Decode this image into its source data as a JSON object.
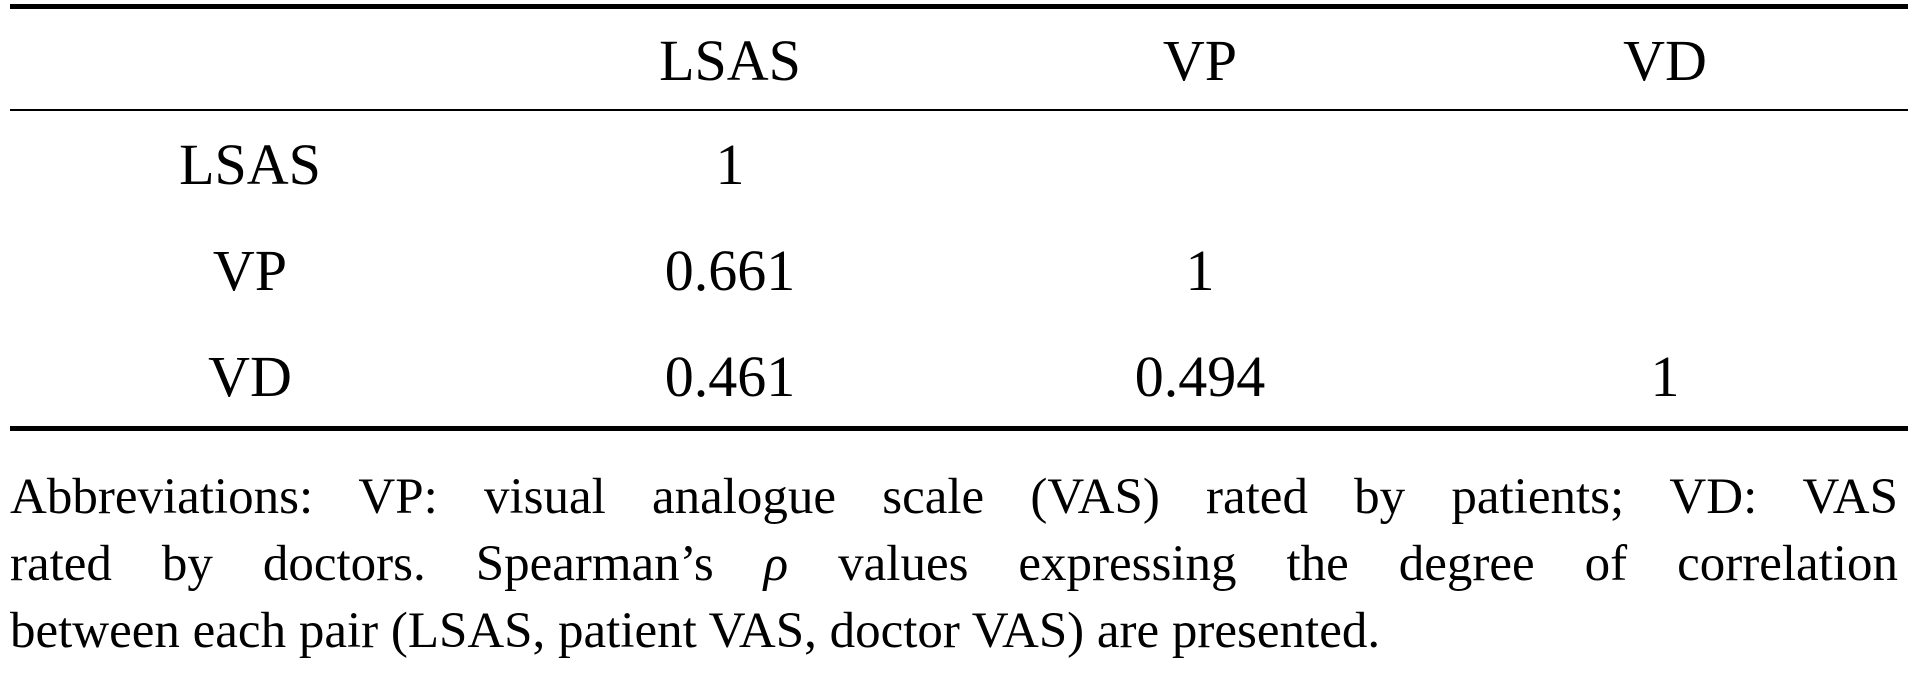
{
  "table": {
    "header": [
      "",
      "LSAS",
      "VP",
      "VD"
    ],
    "rows": [
      [
        "LSAS",
        "1",
        "",
        ""
      ],
      [
        "VP",
        "0.661",
        "1",
        ""
      ],
      [
        "VD",
        "0.461",
        "0.494",
        "1"
      ]
    ]
  },
  "footnote": {
    "line1": "Abbreviations: VP: visual analogue scale (VAS) rated by patients; VD: VAS",
    "line2_part1": "rated by doctors. Spearman’s ",
    "line2_rho": "ρ",
    "line2_part2": " values expressing the degree of correlation",
    "line3": "between each pair (LSAS, patient VAS, doctor VAS) are presented."
  }
}
